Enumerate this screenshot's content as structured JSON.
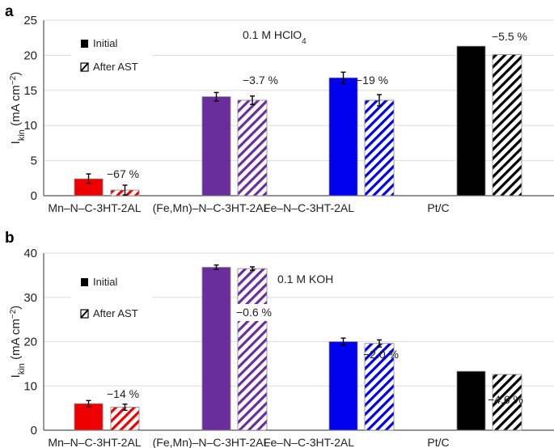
{
  "chart_data": [
    {
      "type": "bar",
      "panel_label": "a",
      "title": "0.1 M HClO4",
      "title_main": "0.1 M HClO",
      "title_sub": "4",
      "ylabel": "I_kin (mA cm^-2)",
      "ylabel_main": "I",
      "ylabel_sub": "kin",
      "ylabel_unit": " (mA cm",
      "ylabel_exp": "−2",
      "ylabel_close": ")",
      "ylim": [
        0,
        25
      ],
      "yticks": [
        0,
        5,
        10,
        15,
        20,
        25
      ],
      "grid": true,
      "legend": [
        "Initial",
        "After AST"
      ],
      "legend_placement": "top-left",
      "categories": [
        "Mn–N–C-3HT-2AL",
        "(Fe,Mn)–N–C-3HT-2AL",
        "Fe–N–C-3HT-2AL",
        "Pt/C"
      ],
      "colors": [
        "#ee0000",
        "#6a2d9c",
        "#0000ee",
        "#000000"
      ],
      "series": [
        {
          "name": "Initial",
          "values": [
            2.4,
            14.1,
            16.8,
            21.3
          ],
          "errors": [
            0.7,
            0.6,
            0.8,
            0
          ]
        },
        {
          "name": "After AST",
          "values": [
            0.8,
            13.6,
            13.6,
            20.1
          ],
          "errors": [
            0.7,
            0.6,
            0.8,
            0
          ]
        }
      ],
      "annotations": [
        "−67 %",
        "−3.7 %",
        "−19 %",
        "−5.5 %"
      ]
    },
    {
      "type": "bar",
      "panel_label": "b",
      "title": "0.1 M KOH",
      "title_main": "0.1 M KOH",
      "title_sub": "",
      "ylabel": "I_kin (mA cm^-2)",
      "ylabel_main": "I",
      "ylabel_sub": "kin",
      "ylabel_unit": " (mA cm",
      "ylabel_exp": "−2",
      "ylabel_close": ")",
      "ylim": [
        0,
        40
      ],
      "yticks": [
        0,
        10,
        20,
        30,
        40
      ],
      "grid": true,
      "legend": [
        "Initial",
        "After AST"
      ],
      "legend_placement": "top-left",
      "categories": [
        "Mn–N–C-3HT-2AL",
        "(Fe,Mn)–N–C-3HT-2AL",
        "Fe–N–C-3HT-2AL",
        "Pt/C"
      ],
      "colors": [
        "#ee0000",
        "#6a2d9c",
        "#0000ee",
        "#000000"
      ],
      "series": [
        {
          "name": "Initial",
          "values": [
            6.0,
            36.8,
            20.0,
            13.3
          ],
          "errors": [
            0.7,
            0.5,
            0.8,
            0
          ]
        },
        {
          "name": "After AST",
          "values": [
            5.2,
            36.5,
            19.6,
            12.6
          ],
          "errors": [
            0.7,
            0.4,
            0.8,
            0
          ]
        }
      ],
      "annotations": [
        "−14 %",
        "−0.6 %",
        "−2.0 %",
        "−4.6 %"
      ]
    }
  ]
}
